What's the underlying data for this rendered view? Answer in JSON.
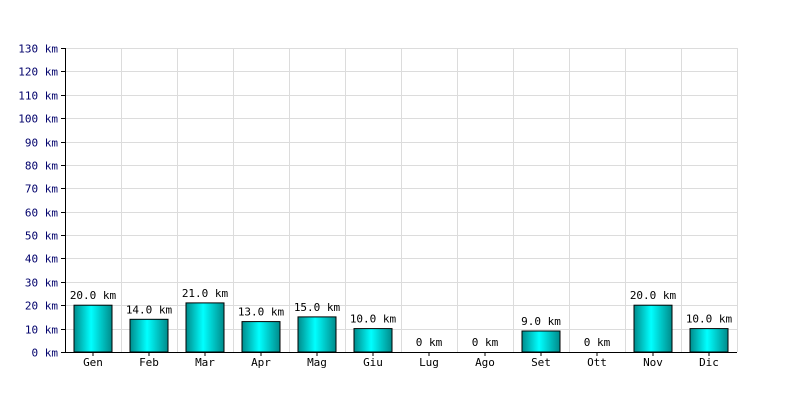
{
  "chart_data": {
    "type": "bar",
    "title": "",
    "xlabel": "",
    "ylabel": "",
    "unit": "km",
    "ylim": [
      0,
      130
    ],
    "ytick_step": 10,
    "ytick_labels": [
      "0 km",
      "10 km",
      "20 km",
      "30 km",
      "40 km",
      "50 km",
      "60 km",
      "70 km",
      "80 km",
      "90 km",
      "100 km",
      "110 km",
      "120 km",
      "130 km"
    ],
    "categories": [
      "Gen",
      "Feb",
      "Mar",
      "Apr",
      "Mag",
      "Giu",
      "Lug",
      "Ago",
      "Set",
      "Ott",
      "Nov",
      "Dic"
    ],
    "values": [
      20.0,
      14.0,
      21.0,
      13.0,
      15.0,
      10.0,
      0,
      0,
      9.0,
      0,
      20.0,
      10.0
    ],
    "data_labels": [
      "20.0 km",
      "14.0 km",
      "21.0 km",
      "13.0 km",
      "15.0 km",
      "10.0 km",
      "0 km",
      "0 km",
      "9.0 km",
      "0 km",
      "20.0 km",
      "10.0 km"
    ],
    "grid": true,
    "bar_colors": {
      "top": "#00ffff",
      "bottom": "#008b8b",
      "edge": "#000000"
    },
    "grid_color": "#dcdcdc",
    "axis_label_color": "#00006b"
  }
}
